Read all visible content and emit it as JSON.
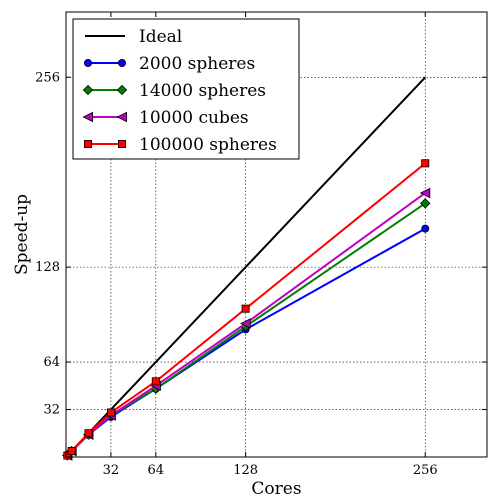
{
  "chart_data": {
    "type": "line",
    "title": "",
    "xlabel": "Cores",
    "ylabel": "Speed-up",
    "xlim": [
      0,
      300
    ],
    "ylim": [
      0,
      300
    ],
    "x_ticks": [
      32,
      64,
      128,
      256
    ],
    "y_ticks": [
      32,
      64,
      128,
      256
    ],
    "grid": true,
    "legend": "upper-left",
    "series": [
      {
        "name": "Ideal",
        "color": "#000000",
        "marker": "none",
        "x": [
          1,
          256
        ],
        "y": [
          1,
          256
        ]
      },
      {
        "name": "2000 spheres",
        "color": "#0000ff",
        "marker": "circle",
        "x": [
          1,
          4,
          16,
          32,
          64,
          128,
          256
        ],
        "y": [
          1,
          4,
          15,
          27,
          46,
          86,
          154
        ]
      },
      {
        "name": "14000 spheres",
        "color": "#008000",
        "marker": "diamond",
        "x": [
          1,
          4,
          16,
          32,
          64,
          128,
          256
        ],
        "y": [
          1,
          4,
          15,
          28,
          46,
          88,
          171
        ]
      },
      {
        "name": "10000 cubes",
        "color": "#bf00bf",
        "marker": "triangle-left",
        "x": [
          1,
          4,
          16,
          32,
          64,
          128,
          256
        ],
        "y": [
          1,
          4,
          15,
          28,
          48,
          90,
          178
        ]
      },
      {
        "name": "100000 spheres",
        "color": "#ff0000",
        "marker": "square",
        "x": [
          1,
          4,
          16,
          32,
          64,
          128,
          256
        ],
        "y": [
          1,
          4,
          16,
          30,
          51,
          100,
          198
        ]
      }
    ]
  }
}
